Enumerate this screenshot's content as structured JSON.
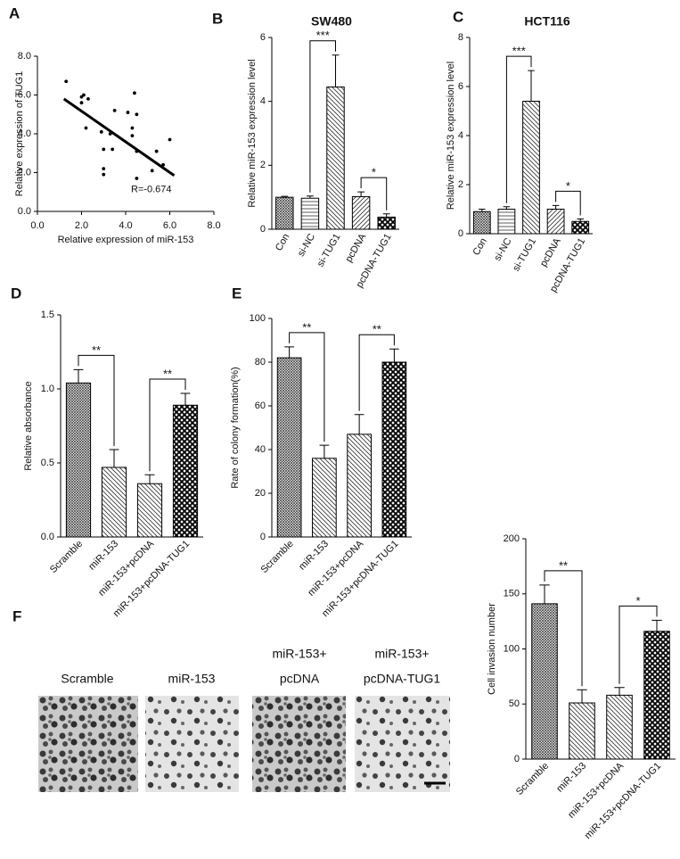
{
  "chart_data": [
    {
      "type": "scatter",
      "panel_label": "A",
      "xlabel": "Relative  expression of miR-153",
      "ylabel": "Relative expression of TUG1",
      "x": [
        1.3,
        2.0,
        2.1,
        2.0,
        2.3,
        2.2,
        2.9,
        3.0,
        3.0,
        3.0,
        3.3,
        3.4,
        3.5,
        4.1,
        4.4,
        4.3,
        4.3,
        4.5,
        4.5,
        4.5,
        5.2,
        5.4,
        5.7,
        6.0
      ],
      "y": [
        6.7,
        5.9,
        6.0,
        5.6,
        5.8,
        4.3,
        4.1,
        3.2,
        2.2,
        1.9,
        4.0,
        3.2,
        5.2,
        5.1,
        6.1,
        4.3,
        3.9,
        5.0,
        3.1,
        1.7,
        2.1,
        3.1,
        2.4,
        3.7
      ],
      "fit": {
        "x": [
          1.2,
          6.2
        ],
        "y": [
          5.8,
          1.85
        ]
      },
      "annotation": "R=-0.674",
      "color": "#000000",
      "xlim": [
        0,
        8
      ],
      "xticks": [
        {
          "value": 0,
          "label": "0.0"
        },
        {
          "value": 2,
          "label": "2.0"
        },
        {
          "value": 4,
          "label": "4.0"
        },
        {
          "value": 6,
          "label": "6.0"
        },
        {
          "value": 8,
          "label": "8.0"
        }
      ],
      "ylim": [
        0,
        8
      ],
      "yticks": [
        {
          "value": 0,
          "label": "0.0"
        },
        {
          "value": 2,
          "label": "2.0"
        },
        {
          "value": 4,
          "label": "4.0"
        },
        {
          "value": 6,
          "label": "6.0"
        },
        {
          "value": 8,
          "label": "8.0"
        }
      ]
    },
    {
      "type": "bar",
      "panel_label": "B",
      "title": "SW480",
      "ylabel": "Relative miR-153 expression level",
      "categories": [
        "Con",
        "si-NC",
        "si-TUG1",
        "pcDNA",
        "pcDNA-TUG1"
      ],
      "values": [
        1.0,
        0.97,
        4.45,
        1.02,
        0.38
      ],
      "errors": [
        0.03,
        0.07,
        1.0,
        0.15,
        0.1
      ],
      "patterns": [
        "fine-grid",
        "hlines",
        "diag",
        "diag2",
        "checker"
      ],
      "significance": [
        {
          "between": [
            "si-NC",
            "si-TUG1"
          ],
          "label": "***"
        },
        {
          "between": [
            "pcDNA",
            "pcDNA-TUG1"
          ],
          "label": "*"
        }
      ],
      "ylim": [
        0,
        6
      ],
      "yticks": [
        0,
        2,
        4,
        6
      ]
    },
    {
      "type": "bar",
      "panel_label": "C",
      "title": "HCT116",
      "ylabel": "Relative miR-153 expression level",
      "categories": [
        "Con",
        "si-NC",
        "si-TUG1",
        "pcDNA",
        "pcDNA-TUG1"
      ],
      "values": [
        0.9,
        1.0,
        5.4,
        1.0,
        0.5
      ],
      "errors": [
        0.1,
        0.1,
        1.25,
        0.15,
        0.1
      ],
      "patterns": [
        "fine-grid",
        "hlines",
        "diag",
        "diag2",
        "checker"
      ],
      "significance": [
        {
          "between": [
            "si-NC",
            "si-TUG1"
          ],
          "label": "***"
        },
        {
          "between": [
            "pcDNA",
            "pcDNA-TUG1"
          ],
          "label": "*"
        }
      ],
      "ylim": [
        0,
        8
      ],
      "yticks": [
        0,
        2,
        4,
        6,
        8
      ]
    },
    {
      "type": "bar",
      "panel_label": "D",
      "ylabel": "Relative absorbance",
      "categories": [
        "Scramble",
        "miR-153",
        "miR-153+pcDNA",
        "miR-153+pcDNA-TUG1"
      ],
      "values": [
        1.04,
        0.47,
        0.36,
        0.89
      ],
      "errors": [
        0.09,
        0.12,
        0.06,
        0.08
      ],
      "patterns": [
        "fine-grid",
        "diag",
        "diag",
        "checker"
      ],
      "significance": [
        {
          "between": [
            "Scramble",
            "miR-153"
          ],
          "label": "**"
        },
        {
          "between": [
            "miR-153+pcDNA",
            "miR-153+pcDNA-TUG1"
          ],
          "label": "**"
        }
      ],
      "ylim": [
        0,
        1.5
      ],
      "yticks": [
        {
          "value": 0,
          "label": "0.0"
        },
        0.5,
        {
          "value": 1,
          "label": "1.0"
        },
        1.5
      ]
    },
    {
      "type": "bar",
      "panel_label": "E",
      "ylabel": "Rate of colony formation(%)",
      "categories": [
        "Scramble",
        "miR-153",
        "miR-153+pcDNA",
        "miR-153+pcDNA-TUG1"
      ],
      "values": [
        82,
        36,
        47,
        80
      ],
      "errors": [
        5,
        6,
        9,
        6
      ],
      "patterns": [
        "fine-grid",
        "diag",
        "diag",
        "checker"
      ],
      "significance": [
        {
          "between": [
            "Scramble",
            "miR-153"
          ],
          "label": "**"
        },
        {
          "between": [
            "miR-153+pcDNA",
            "miR-153+pcDNA-TUG1"
          ],
          "label": "**"
        }
      ],
      "ylim": [
        0,
        100
      ],
      "yticks": [
        0,
        20,
        40,
        60,
        80,
        100
      ]
    },
    {
      "type": "bar",
      "panel_label": "F",
      "ylabel": "Cell invasion number",
      "categories": [
        "Scramble",
        "miR-153",
        "miR-153+pcDNA",
        "miR-153+pcDNA-TUG1"
      ],
      "values": [
        141,
        51,
        58,
        116
      ],
      "errors": [
        17,
        12,
        7,
        10
      ],
      "patterns": [
        "fine-grid",
        "diag",
        "diag",
        "checker"
      ],
      "significance": [
        {
          "between": [
            "Scramble",
            "miR-153"
          ],
          "label": "**"
        },
        {
          "between": [
            "miR-153+pcDNA",
            "miR-153+pcDNA-TUG1"
          ],
          "label": "*"
        }
      ],
      "ylim": [
        0,
        200
      ],
      "yticks": [
        0,
        50,
        100,
        150,
        200
      ]
    }
  ],
  "images": {
    "labels": [
      [
        "Scramble"
      ],
      [
        "miR-153"
      ],
      [
        "miR-153+",
        "pcDNA"
      ],
      [
        "miR-153+",
        "pcDNA-TUG1"
      ]
    ]
  }
}
